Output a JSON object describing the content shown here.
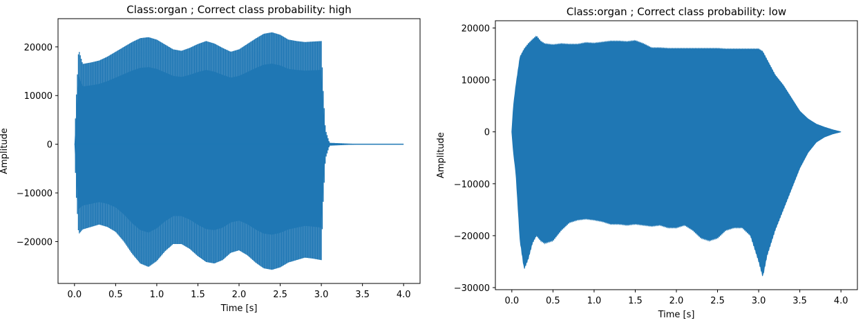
{
  "color": "#1f77b4",
  "chart_data": [
    {
      "type": "line",
      "title": "Class:organ ; Correct class probability: high",
      "xlabel": "Time [s]",
      "ylabel": "Amplitude",
      "xlim": [
        -0.2,
        4.2
      ],
      "ylim": [
        -28600,
        25800
      ],
      "xticks": [
        0.0,
        0.5,
        1.0,
        1.5,
        2.0,
        2.5,
        3.0,
        3.5,
        4.0
      ],
      "xtick_labels": [
        "0.0",
        "0.5",
        "1.0",
        "1.5",
        "2.0",
        "2.5",
        "3.0",
        "3.5",
        "4.0"
      ],
      "yticks": [
        -20000,
        -10000,
        0,
        10000,
        20000
      ],
      "ytick_labels": [
        "−20000",
        "−10000",
        "0",
        "10000",
        "20000"
      ],
      "grid": false,
      "series": [
        {
          "envelope_time": [
            0.0,
            0.02,
            0.05,
            0.1,
            0.2,
            0.3,
            0.4,
            0.5,
            0.6,
            0.7,
            0.8,
            0.9,
            1.0,
            1.1,
            1.2,
            1.3,
            1.4,
            1.5,
            1.6,
            1.7,
            1.8,
            1.9,
            2.0,
            2.1,
            2.2,
            2.3,
            2.4,
            2.5,
            2.6,
            2.7,
            2.8,
            2.9,
            3.0,
            3.02,
            3.05,
            3.1,
            3.5,
            4.0
          ],
          "envelope_max": [
            0,
            9000,
            19500,
            16500,
            16800,
            17200,
            18000,
            19000,
            20000,
            21000,
            21800,
            22000,
            21500,
            20500,
            19500,
            19200,
            19800,
            20600,
            21200,
            20700,
            19800,
            19000,
            19500,
            20600,
            21700,
            22700,
            23000,
            22500,
            21500,
            21200,
            21000,
            21100,
            21200,
            12000,
            3000,
            300,
            0,
            0
          ],
          "envelope_min": [
            0,
            -10000,
            -18500,
            -17500,
            -17000,
            -16500,
            -17000,
            -18000,
            -20000,
            -22500,
            -24500,
            -25200,
            -24000,
            -22000,
            -20500,
            -20500,
            -21500,
            -23000,
            -24200,
            -24500,
            -23800,
            -22300,
            -21800,
            -22800,
            -24300,
            -25500,
            -25800,
            -25300,
            -24300,
            -23800,
            -23300,
            -23500,
            -23800,
            -13000,
            -3000,
            -300,
            0,
            0
          ]
        }
      ]
    },
    {
      "type": "line",
      "title": "Class:organ ; Correct class probability: low",
      "xlabel": "Time [s]",
      "ylabel": "Amplitude",
      "xlim": [
        -0.2,
        4.2
      ],
      "ylim": [
        -30400,
        21400
      ],
      "xticks": [
        0.0,
        0.5,
        1.0,
        1.5,
        2.0,
        2.5,
        3.0,
        3.5,
        4.0
      ],
      "xtick_labels": [
        "0.0",
        "0.5",
        "1.0",
        "1.5",
        "2.0",
        "2.5",
        "3.0",
        "3.5",
        "4.0"
      ],
      "yticks": [
        -30000,
        -20000,
        -10000,
        0,
        10000,
        20000
      ],
      "ytick_labels": [
        "−30000",
        "−20000",
        "−10000",
        "0",
        "10000",
        "20000"
      ],
      "grid": false,
      "series": [
        {
          "envelope_time": [
            0.0,
            0.02,
            0.05,
            0.1,
            0.15,
            0.2,
            0.25,
            0.3,
            0.35,
            0.4,
            0.5,
            0.6,
            0.7,
            0.8,
            0.9,
            1.0,
            1.1,
            1.2,
            1.3,
            1.4,
            1.5,
            1.6,
            1.7,
            1.8,
            1.9,
            2.0,
            2.1,
            2.2,
            2.3,
            2.4,
            2.5,
            2.6,
            2.7,
            2.8,
            2.9,
            3.0,
            3.05,
            3.1,
            3.2,
            3.3,
            3.4,
            3.5,
            3.6,
            3.7,
            3.8,
            3.9,
            3.95,
            4.0
          ],
          "envelope_max": [
            0,
            5000,
            9000,
            14500,
            16000,
            17000,
            17800,
            18500,
            17500,
            17000,
            16800,
            17000,
            16900,
            16900,
            17200,
            17100,
            17300,
            17500,
            17500,
            17400,
            17600,
            17000,
            16200,
            16200,
            16100,
            16100,
            16100,
            16100,
            16100,
            16100,
            16100,
            16000,
            16000,
            16000,
            16000,
            16000,
            15500,
            14000,
            11000,
            9000,
            6500,
            4000,
            2500,
            1500,
            900,
            400,
            200,
            0
          ],
          "envelope_min": [
            0,
            -4000,
            -8000,
            -21000,
            -26500,
            -24500,
            -21500,
            -20000,
            -21000,
            -21500,
            -21000,
            -19000,
            -17500,
            -17000,
            -16800,
            -17000,
            -17300,
            -17800,
            -17800,
            -18000,
            -17800,
            -18000,
            -18200,
            -18000,
            -18500,
            -18500,
            -18000,
            -19000,
            -20500,
            -21000,
            -20500,
            -19000,
            -18500,
            -18500,
            -20000,
            -25000,
            -28000,
            -24000,
            -19000,
            -15000,
            -11000,
            -7000,
            -4000,
            -2000,
            -1000,
            -400,
            -200,
            0
          ]
        }
      ]
    }
  ]
}
